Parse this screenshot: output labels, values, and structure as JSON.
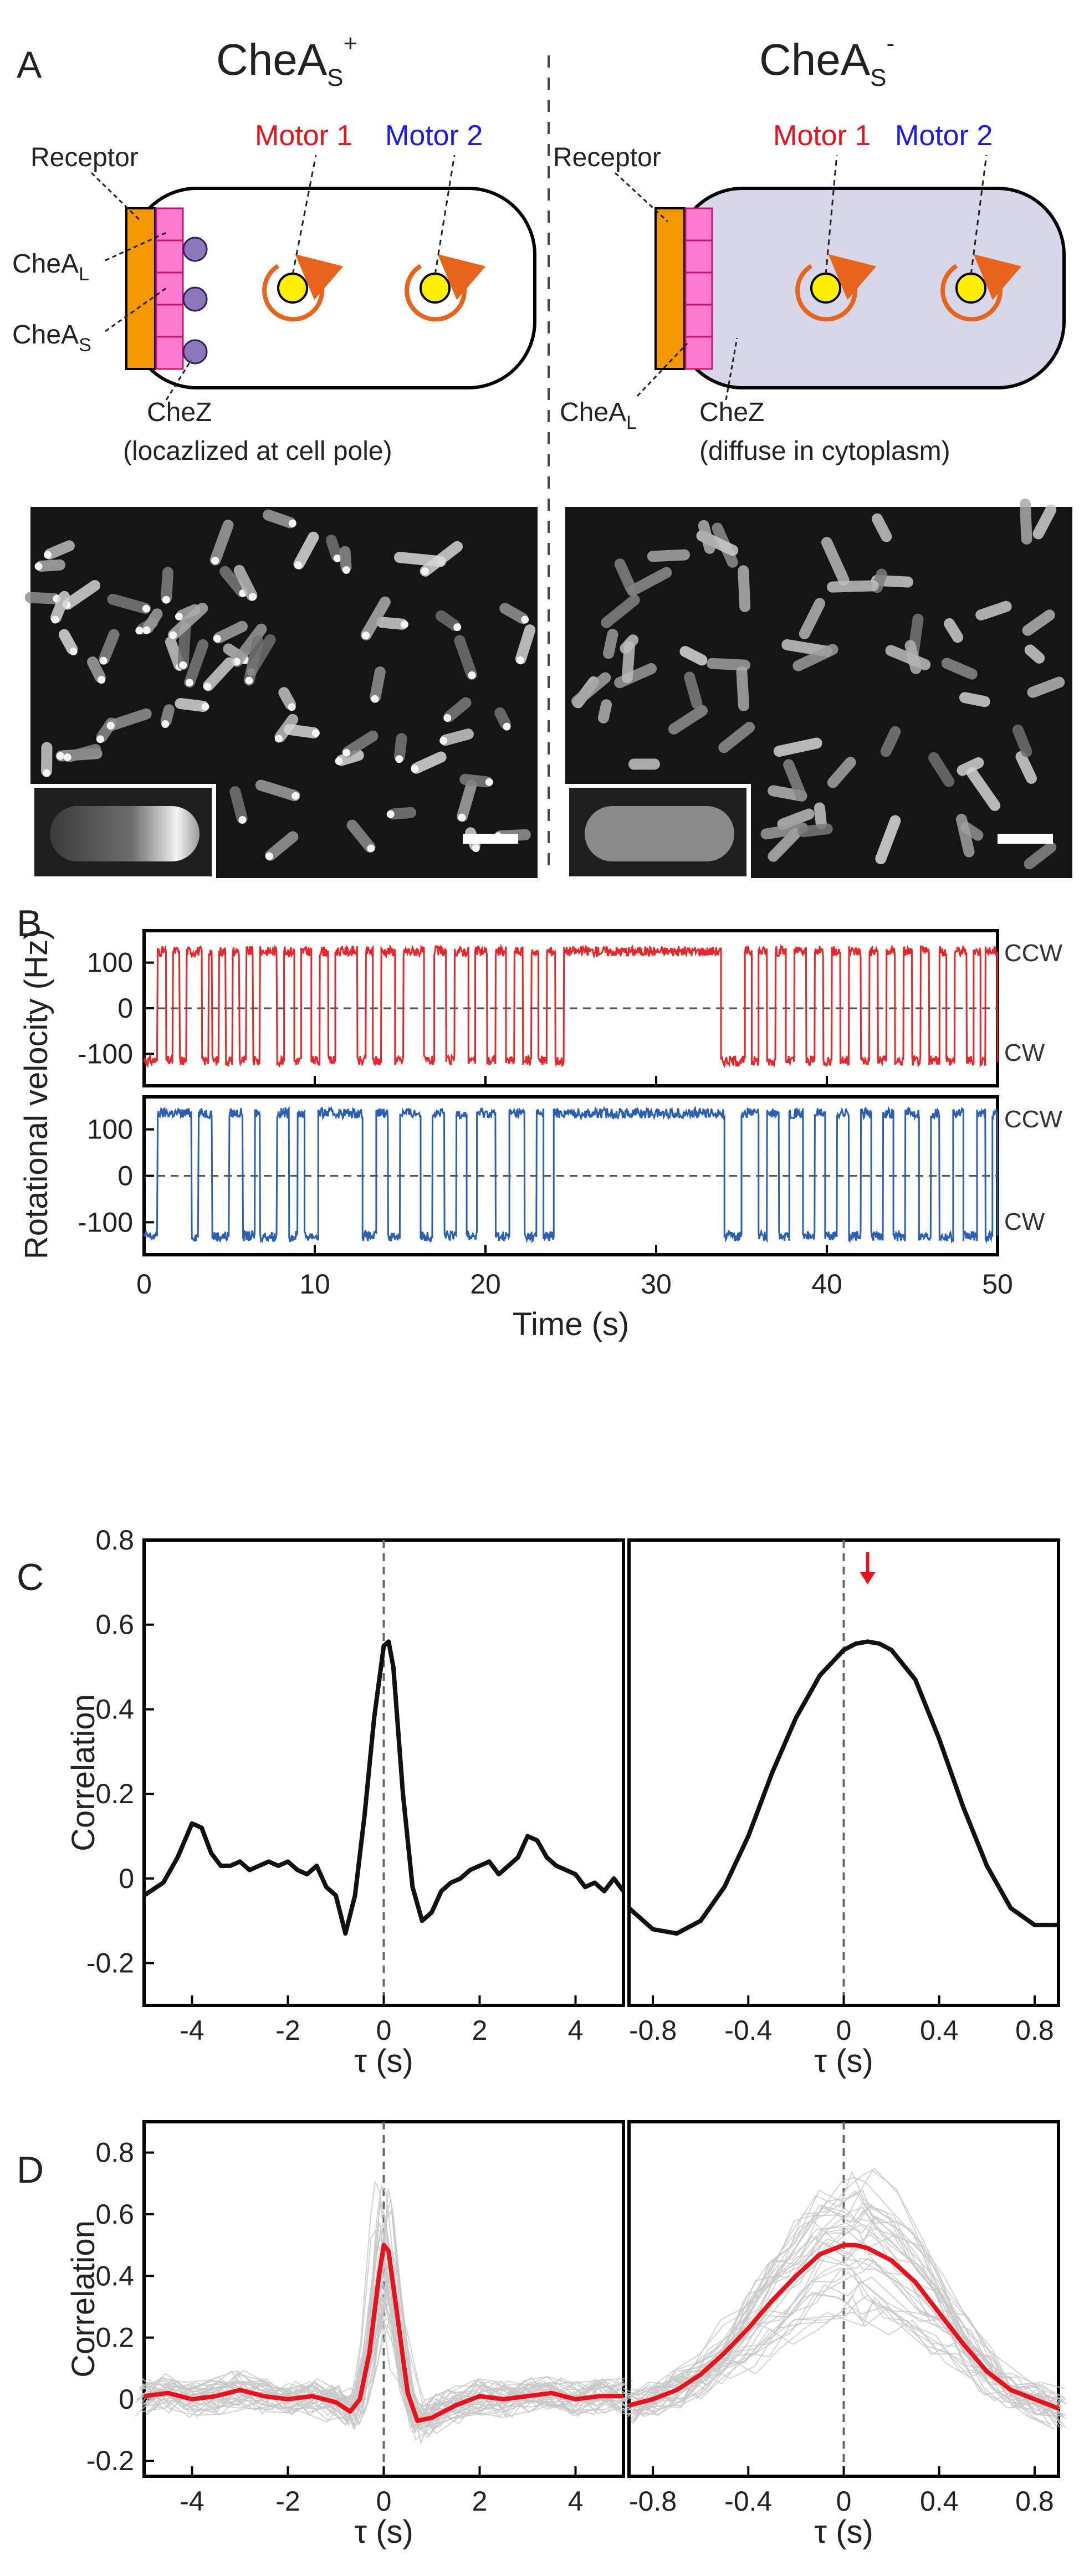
{
  "panel_a": {
    "letter": "A",
    "left": {
      "title": "CheA",
      "title_sub": "S",
      "title_sup": "+",
      "motor1": "Motor 1",
      "motor2": "Motor 2",
      "receptor": "Receptor",
      "chea_l": "CheA",
      "chea_l_sub": "L",
      "chea_s": "CheA",
      "chea_s_sub": "S",
      "chez": "CheZ",
      "chez_note": "(locazlized at cell pole)"
    },
    "right": {
      "title": "CheA",
      "title_sub": "S",
      "title_sup": "-",
      "motor1": "Motor 1",
      "motor2": "Motor 2",
      "receptor": "Receptor",
      "chea_l": "CheA",
      "chea_l_sub": "L",
      "chez": "CheZ",
      "chez_note": "(diffuse in cytoplasm)"
    }
  },
  "colors": {
    "motor1": "#e8121b",
    "motor2": "#1a1aee",
    "trace1": "#e8262a",
    "trace2": "#2a5fb4",
    "receptor": "#f39800",
    "chea": "#ff7bd1",
    "chez": "#8b78b8",
    "rotor_arrow": "#e8641a",
    "motor_yellow": "#ffee00",
    "cytoplasm": "#d7d7ea",
    "mean_curve": "#e8121b",
    "sample_curve": "#c8c8c8"
  },
  "chart_data": [
    {
      "panel": "B",
      "type": "line",
      "letter": "B",
      "ylabel": "Rotational velocity (Hz)",
      "xlabel": "Time (s)",
      "xlim": [
        0,
        50
      ],
      "x_ticks": [
        "0",
        "10",
        "20",
        "30",
        "40",
        "50"
      ],
      "y_ticks": [
        "100",
        "0",
        "-100"
      ],
      "ylim": [
        -170,
        170
      ],
      "state_labels": [
        "CCW",
        "CW"
      ],
      "series": [
        {
          "name": "Motor 1",
          "ccw_level": 125,
          "cw_level": -115,
          "ccw_intervals": [
            [
              0.8,
              1.3
            ],
            [
              1.7,
              2.1
            ],
            [
              2.5,
              3.4
            ],
            [
              3.8,
              4.0
            ],
            [
              4.4,
              4.8
            ],
            [
              5.2,
              5.6
            ],
            [
              6.0,
              6.4
            ],
            [
              6.8,
              7.8
            ],
            [
              8.2,
              8.8
            ],
            [
              9.2,
              9.8
            ],
            [
              10.3,
              10.8
            ],
            [
              11.2,
              12.5
            ],
            [
              13.0,
              13.4
            ],
            [
              13.9,
              14.7
            ],
            [
              15.2,
              16.4
            ],
            [
              17.0,
              17.7
            ],
            [
              18.2,
              19.0
            ],
            [
              19.4,
              20.1
            ],
            [
              20.6,
              21.2
            ],
            [
              21.7,
              22.2
            ],
            [
              22.7,
              23.1
            ],
            [
              23.6,
              24.1
            ],
            [
              24.6,
              33.8
            ],
            [
              35.2,
              35.6
            ],
            [
              36.0,
              36.5
            ],
            [
              37.0,
              37.6
            ],
            [
              38.1,
              38.8
            ],
            [
              39.3,
              39.8
            ],
            [
              40.3,
              40.8
            ],
            [
              41.3,
              42.0
            ],
            [
              42.5,
              43.0
            ],
            [
              43.5,
              44.0
            ],
            [
              44.5,
              45.0
            ],
            [
              45.5,
              46.0
            ],
            [
              46.6,
              47.0
            ],
            [
              47.5,
              48.2
            ],
            [
              48.6,
              49.0
            ],
            [
              49.3,
              50.0
            ]
          ]
        },
        {
          "name": "Motor 2",
          "ccw_level": 135,
          "cw_level": -130,
          "ccw_intervals": [
            [
              0.8,
              2.8
            ],
            [
              3.2,
              4.0
            ],
            [
              5.0,
              5.8
            ],
            [
              6.5,
              6.8
            ],
            [
              7.8,
              8.5
            ],
            [
              9.0,
              9.4
            ],
            [
              10.2,
              12.8
            ],
            [
              13.6,
              14.3
            ],
            [
              15.0,
              16.2
            ],
            [
              16.9,
              17.6
            ],
            [
              18.3,
              18.9
            ],
            [
              19.5,
              20.6
            ],
            [
              21.4,
              22.3
            ],
            [
              23.0,
              23.4
            ],
            [
              24.0,
              34.0
            ],
            [
              35.0,
              36.0
            ],
            [
              36.5,
              37.2
            ],
            [
              37.8,
              38.6
            ],
            [
              39.3,
              39.9
            ],
            [
              40.6,
              41.3
            ],
            [
              42.0,
              42.6
            ],
            [
              43.3,
              43.9
            ],
            [
              44.6,
              45.4
            ],
            [
              46.1,
              46.6
            ],
            [
              47.4,
              48.0
            ],
            [
              48.8,
              49.3
            ],
            [
              49.7,
              50.0
            ]
          ]
        }
      ]
    },
    {
      "panel": "C-left",
      "type": "line",
      "letter": "C",
      "ylabel": "Correlation",
      "xlabel": "τ (s)",
      "xlim": [
        -5,
        5
      ],
      "ylim": [
        -0.3,
        0.8
      ],
      "x_ticks": [
        "-4",
        "-2",
        "0",
        "2",
        "4"
      ],
      "y_ticks": [
        "0.8",
        "0.6",
        "0.4",
        "0.2",
        "0",
        "-0.2"
      ],
      "series": [
        {
          "x": [
            -5.0,
            -4.6,
            -4.3,
            -4.0,
            -3.8,
            -3.6,
            -3.4,
            -3.2,
            -3.0,
            -2.8,
            -2.6,
            -2.4,
            -2.2,
            -2.0,
            -1.8,
            -1.6,
            -1.4,
            -1.2,
            -1.0,
            -0.8,
            -0.6,
            -0.4,
            -0.2,
            0.0,
            0.1,
            0.2,
            0.4,
            0.6,
            0.8,
            1.0,
            1.2,
            1.4,
            1.6,
            1.8,
            2.0,
            2.2,
            2.4,
            2.6,
            2.8,
            3.0,
            3.2,
            3.4,
            3.6,
            3.8,
            4.0,
            4.2,
            4.4,
            4.6,
            4.8,
            5.0
          ],
          "y": [
            -0.04,
            -0.01,
            0.05,
            0.13,
            0.12,
            0.06,
            0.03,
            0.03,
            0.04,
            0.02,
            0.03,
            0.04,
            0.03,
            0.04,
            0.02,
            0.01,
            0.03,
            -0.02,
            -0.04,
            -0.13,
            -0.04,
            0.15,
            0.38,
            0.55,
            0.56,
            0.5,
            0.2,
            -0.02,
            -0.1,
            -0.08,
            -0.03,
            -0.01,
            0.0,
            0.02,
            0.03,
            0.04,
            0.01,
            0.03,
            0.05,
            0.1,
            0.09,
            0.05,
            0.03,
            0.02,
            0.01,
            -0.02,
            -0.01,
            -0.03,
            0.0,
            -0.03
          ]
        }
      ]
    },
    {
      "panel": "C-right",
      "type": "line",
      "xlabel": "τ (s)",
      "xlim": [
        -0.9,
        0.9
      ],
      "ylim": [
        -0.3,
        0.8
      ],
      "x_ticks": [
        "-0.8",
        "-0.4",
        "0",
        "0.4",
        "0.8"
      ],
      "peak_marker_tau": 0.1,
      "series": [
        {
          "x": [
            -0.9,
            -0.8,
            -0.7,
            -0.6,
            -0.5,
            -0.4,
            -0.3,
            -0.2,
            -0.1,
            0.0,
            0.05,
            0.1,
            0.15,
            0.2,
            0.3,
            0.4,
            0.5,
            0.6,
            0.7,
            0.8,
            0.9
          ],
          "y": [
            -0.07,
            -0.12,
            -0.13,
            -0.1,
            -0.02,
            0.1,
            0.25,
            0.38,
            0.48,
            0.54,
            0.555,
            0.56,
            0.555,
            0.54,
            0.47,
            0.33,
            0.17,
            0.03,
            -0.07,
            -0.11,
            -0.11
          ]
        }
      ]
    },
    {
      "panel": "D-left",
      "type": "line",
      "letter": "D",
      "ylabel": "Correlation",
      "xlabel": "τ (s)",
      "xlim": [
        -5,
        5
      ],
      "ylim": [
        -0.25,
        0.9
      ],
      "x_ticks": [
        "-4",
        "-2",
        "0",
        "2",
        "4"
      ],
      "y_ticks": [
        "0.8",
        "0.6",
        "0.4",
        "0.2",
        "0",
        "-0.2"
      ],
      "series": [
        {
          "role": "mean",
          "x": [
            -5.0,
            -4.5,
            -4.0,
            -3.5,
            -3.0,
            -2.5,
            -2.0,
            -1.5,
            -1.0,
            -0.7,
            -0.5,
            -0.3,
            -0.1,
            0.0,
            0.1,
            0.3,
            0.5,
            0.7,
            1.0,
            1.5,
            2.0,
            2.5,
            3.0,
            3.5,
            4.0,
            4.5,
            5.0
          ],
          "y": [
            0.01,
            0.02,
            0.0,
            0.01,
            0.03,
            0.01,
            0.0,
            0.01,
            -0.01,
            -0.04,
            0.0,
            0.15,
            0.4,
            0.5,
            0.48,
            0.25,
            0.02,
            -0.07,
            -0.06,
            -0.02,
            0.01,
            0.0,
            0.01,
            0.02,
            0.0,
            0.01,
            0.01
          ]
        }
      ]
    },
    {
      "panel": "D-right",
      "type": "line",
      "xlabel": "τ (s)",
      "xlim": [
        -0.9,
        0.9
      ],
      "ylim": [
        -0.25,
        0.9
      ],
      "x_ticks": [
        "-0.8",
        "-0.4",
        "0",
        "0.4",
        "0.8"
      ],
      "series": [
        {
          "role": "mean",
          "x": [
            -0.9,
            -0.8,
            -0.7,
            -0.6,
            -0.5,
            -0.4,
            -0.3,
            -0.2,
            -0.1,
            0.0,
            0.05,
            0.1,
            0.2,
            0.3,
            0.4,
            0.5,
            0.6,
            0.7,
            0.8,
            0.9
          ],
          "y": [
            -0.02,
            0.0,
            0.03,
            0.08,
            0.15,
            0.23,
            0.32,
            0.4,
            0.47,
            0.5,
            0.5,
            0.49,
            0.45,
            0.38,
            0.28,
            0.18,
            0.09,
            0.03,
            0.0,
            -0.03
          ]
        }
      ]
    }
  ]
}
